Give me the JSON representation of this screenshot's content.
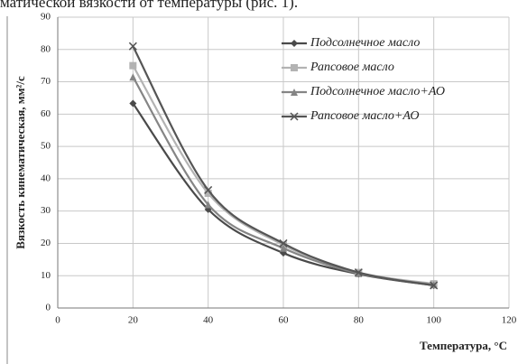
{
  "chart_data": {
    "type": "line",
    "caption": "матической вязкости от температуры (рис. 1).",
    "x_label": "Температура, °С",
    "y_label": "Вязкость кинематическая, мм²/с",
    "x": [
      20,
      40,
      60,
      80,
      100
    ],
    "series": [
      {
        "name": "Подсолнечное масло",
        "color": "#4a4a4a",
        "marker": "diamond",
        "values": [
          63.3,
          30.5,
          17,
          10.5,
          7
        ]
      },
      {
        "name": "Рапсовое масло",
        "color": "#b3b3b3",
        "marker": "square",
        "values": [
          75,
          35.5,
          19.5,
          11,
          7.5
        ]
      },
      {
        "name": "Подсолнечное масло+АО",
        "color": "#858585",
        "marker": "triangle",
        "values": [
          71.5,
          32,
          18.5,
          10.7,
          7.2
        ]
      },
      {
        "name": "Рапсовое масло+АО",
        "color": "#555555",
        "marker": "cross",
        "values": [
          81,
          36.5,
          20,
          11,
          7
        ]
      }
    ],
    "xlim": [
      0,
      120
    ],
    "xticks": [
      0,
      20,
      40,
      60,
      80,
      100,
      120
    ],
    "ylim": [
      0,
      90
    ],
    "yticks": [
      0,
      10,
      20,
      30,
      40,
      50,
      60,
      70,
      80,
      90
    ],
    "grid": true,
    "legend": "upper right"
  }
}
